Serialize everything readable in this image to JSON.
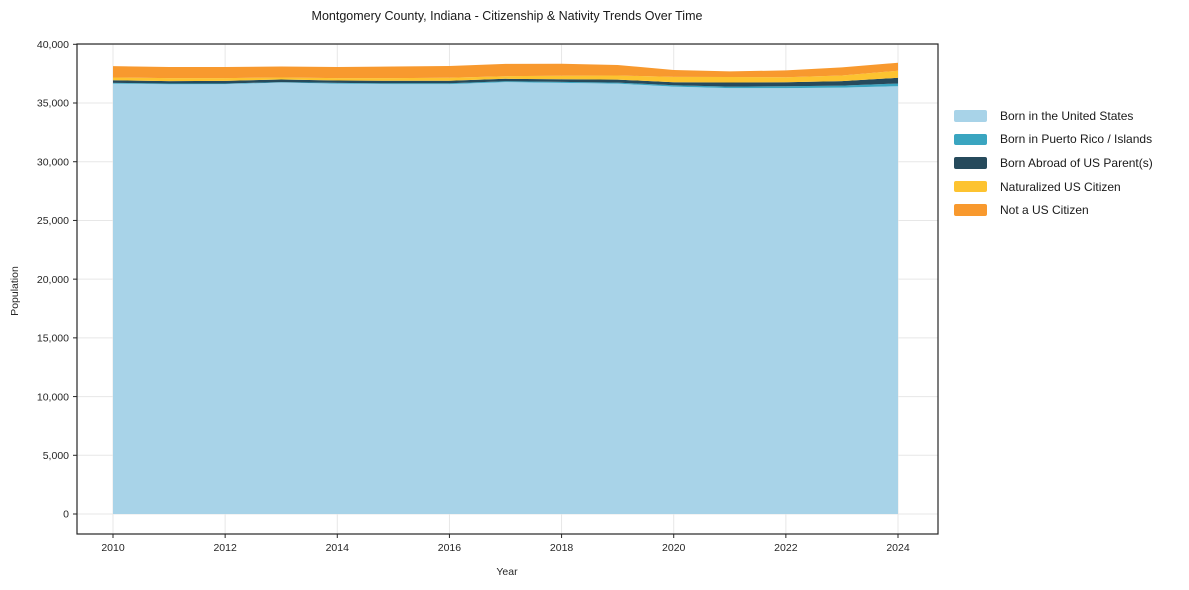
{
  "chart_data": {
    "type": "area",
    "stacked": true,
    "title": "Montgomery County, Indiana - Citizenship & Nativity Trends Over Time",
    "xlabel": "Year",
    "ylabel": "Population",
    "x": [
      2010,
      2011,
      2012,
      2013,
      2014,
      2015,
      2016,
      2017,
      2018,
      2019,
      2020,
      2021,
      2022,
      2023,
      2024
    ],
    "series": [
      {
        "name": "Born in the United States",
        "color": "#a8d3e8",
        "values": [
          36650,
          36600,
          36610,
          36740,
          36650,
          36610,
          36610,
          36780,
          36715,
          36650,
          36400,
          36270,
          36270,
          36310,
          36430
        ]
      },
      {
        "name": "Born in Puerto Rico / Islands",
        "color": "#3aa5c0",
        "values": [
          60,
          60,
          55,
          45,
          60,
          70,
          75,
          80,
          85,
          90,
          110,
          130,
          150,
          170,
          230
        ]
      },
      {
        "name": "Born Abroad of US Parent(s)",
        "color": "#264a5c",
        "values": [
          220,
          210,
          215,
          215,
          210,
          210,
          205,
          200,
          225,
          250,
          260,
          345,
          345,
          390,
          490
        ]
      },
      {
        "name": "Naturalized US Citizen",
        "color": "#fdc330",
        "values": [
          240,
          250,
          245,
          170,
          200,
          230,
          260,
          220,
          290,
          350,
          455,
          470,
          430,
          470,
          600
        ]
      },
      {
        "name": "Not a US Citizen",
        "color": "#f8992e",
        "values": [
          970,
          950,
          945,
          940,
          950,
          990,
          1005,
          1050,
          1035,
          900,
          590,
          475,
          580,
          690,
          685
        ]
      }
    ],
    "ylim": [
      0,
      40000
    ],
    "yticks": [
      0,
      5000,
      10000,
      15000,
      20000,
      25000,
      30000,
      35000,
      40000
    ],
    "ytick_labels": [
      "0",
      "5,000",
      "10,000",
      "15,000",
      "20,000",
      "25,000",
      "30,000",
      "35,000",
      "40,000"
    ],
    "xticks": [
      2010,
      2012,
      2014,
      2016,
      2018,
      2020,
      2022,
      2024
    ],
    "grid": true,
    "legend_position": "right",
    "grid_color": "#e7e7e7",
    "axis_color": "#262626"
  }
}
